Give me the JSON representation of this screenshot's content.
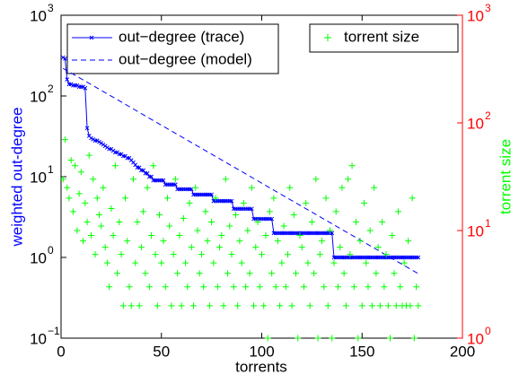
{
  "chart_data": {
    "type": "line",
    "xlabel": "torrents",
    "ylabel": "weighted out-degree",
    "y2label": "torrent size",
    "ylabel_color": "#0000ff",
    "y2label_color": "#00ff00",
    "y2axis_color": "#ff0000",
    "xlim": [
      0,
      200
    ],
    "xticks": [
      0,
      50,
      100,
      150,
      200
    ],
    "ylim": [
      0.1,
      1000
    ],
    "yscale": "log",
    "yticks": [
      {
        "value": 0.1,
        "label": "10",
        "exponent": "−1"
      },
      {
        "value": 1,
        "label": "10",
        "exponent": "0"
      },
      {
        "value": 10,
        "label": "10",
        "exponent": "1"
      },
      {
        "value": 100,
        "label": "10",
        "exponent": "2"
      },
      {
        "value": 1000,
        "label": "10",
        "exponent": "3"
      }
    ],
    "y2lim": [
      1,
      1000
    ],
    "y2scale": "log",
    "y2ticks": [
      {
        "value": 1,
        "label": "10",
        "exponent": "0"
      },
      {
        "value": 10,
        "label": "10",
        "exponent": "1"
      },
      {
        "value": 100,
        "label": "10",
        "exponent": "2"
      },
      {
        "value": 1000,
        "label": "10",
        "exponent": "3"
      }
    ],
    "legend_loc": "upper left",
    "legend2_loc": "upper right",
    "x": [
      1,
      2,
      3,
      4,
      5,
      6,
      7,
      8,
      9,
      10,
      11,
      12,
      13,
      14,
      15,
      16,
      17,
      18,
      19,
      20,
      21,
      22,
      23,
      24,
      25,
      26,
      27,
      28,
      29,
      30,
      31,
      32,
      33,
      34,
      35,
      36,
      37,
      38,
      39,
      40,
      41,
      42,
      43,
      44,
      45,
      46,
      47,
      48,
      49,
      50,
      51,
      52,
      53,
      54,
      55,
      56,
      57,
      58,
      59,
      60,
      61,
      62,
      63,
      64,
      65,
      66,
      67,
      68,
      69,
      70,
      71,
      72,
      73,
      74,
      75,
      76,
      77,
      78,
      79,
      80,
      81,
      82,
      83,
      84,
      85,
      86,
      87,
      88,
      89,
      90,
      91,
      92,
      93,
      94,
      95,
      96,
      97,
      98,
      99,
      100,
      101,
      102,
      103,
      104,
      105,
      106,
      107,
      108,
      109,
      110,
      111,
      112,
      113,
      114,
      115,
      116,
      117,
      118,
      119,
      120,
      121,
      122,
      123,
      124,
      125,
      126,
      127,
      128,
      129,
      130,
      131,
      132,
      133,
      134,
      135,
      136,
      137,
      138,
      139,
      140,
      141,
      142,
      143,
      144,
      145,
      146,
      147,
      148,
      149,
      150,
      151,
      152,
      153,
      154,
      155,
      156,
      157,
      158,
      159,
      160,
      161,
      162,
      163,
      164,
      165,
      166,
      167,
      168,
      169,
      170,
      171,
      172,
      173,
      174,
      175,
      176,
      177,
      178
    ],
    "series": [
      {
        "name": "out−degree (trace)",
        "color": "#0000ff",
        "style": "solid",
        "marker": "x",
        "axis": "y",
        "values": [
          300,
          290,
          160,
          140,
          140,
          135,
          135,
          135,
          130,
          130,
          130,
          125,
          40,
          32,
          30,
          29,
          28,
          28,
          27,
          26,
          25,
          24,
          23,
          22,
          22,
          21,
          20,
          20,
          19,
          19,
          18,
          18,
          17,
          17,
          16,
          15,
          14,
          13,
          13,
          12,
          12,
          11,
          11,
          10,
          10,
          9,
          9,
          9,
          9,
          9,
          9,
          8,
          8,
          8,
          8,
          8,
          8,
          7,
          7,
          7,
          7,
          7,
          7,
          7,
          7,
          6,
          6,
          6,
          6,
          6,
          6,
          6,
          6,
          6,
          6,
          5,
          5,
          5,
          5,
          5,
          5,
          5,
          5,
          5,
          5,
          4,
          4,
          4,
          4,
          4,
          4,
          4,
          4,
          4,
          4,
          3,
          3,
          3,
          3,
          3,
          3,
          3,
          3,
          3,
          3,
          2,
          2,
          2,
          2,
          2,
          2,
          2,
          2,
          2,
          2,
          2,
          2,
          2,
          2,
          2,
          2,
          2,
          2,
          2,
          2,
          2,
          2,
          2,
          2,
          2,
          2,
          2,
          2,
          2,
          2,
          1,
          1,
          1,
          1,
          1,
          1,
          1,
          1,
          1,
          1,
          1,
          1,
          1,
          1,
          1,
          1,
          1,
          1,
          1,
          1,
          1,
          1,
          1,
          1,
          1,
          1,
          1,
          1,
          1,
          1,
          1,
          1,
          1,
          1,
          1,
          1,
          1,
          1,
          1,
          1,
          1,
          1,
          1
        ]
      },
      {
        "name": "out−degree (model)",
        "color": "#0000ff",
        "style": "dashed",
        "axis": "y",
        "x": [
          1,
          178
        ],
        "values": [
          220,
          0.63
        ]
      },
      {
        "name": "torrent size",
        "color": "#00ff00",
        "style": "none",
        "marker": "+",
        "axis": "y2",
        "values": [
          30,
          70,
          25,
          20,
          45,
          15,
          40,
          10,
          22,
          35,
          8,
          18,
          12,
          50,
          9,
          30,
          6,
          20,
          14,
          11,
          25,
          7,
          5,
          3,
          16,
          9,
          40,
          4,
          12,
          6,
          2,
          20,
          8,
          3,
          2,
          30,
          5,
          12,
          2,
          7,
          15,
          4,
          25,
          3,
          9,
          40,
          6,
          2,
          14,
          5,
          8,
          3,
          20,
          11,
          2,
          6,
          30,
          4,
          9,
          2,
          13,
          5,
          3,
          18,
          7,
          2,
          25,
          10,
          4,
          6,
          3,
          15,
          8,
          2,
          12,
          5,
          20,
          3,
          7,
          9,
          2,
          30,
          4,
          11,
          6,
          3,
          14,
          2,
          8,
          5,
          18,
          3,
          10,
          4,
          25,
          2,
          7,
          12,
          3,
          6,
          2,
          9,
          1,
          15,
          4,
          20,
          3,
          8,
          2,
          5,
          11,
          3,
          6,
          25,
          2,
          14,
          4,
          1,
          9,
          7,
          3,
          18,
          5,
          2,
          12,
          4,
          30,
          1,
          6,
          8,
          3,
          20,
          2,
          10,
          1,
          5,
          15,
          3,
          7,
          25,
          4,
          2,
          30,
          6,
          40,
          3,
          12,
          1,
          8,
          2,
          18,
          5,
          3,
          10,
          2,
          25,
          4,
          7,
          2,
          12,
          3,
          6,
          2,
          1,
          9,
          4,
          2,
          15,
          3,
          2,
          5,
          2,
          8,
          2,
          20,
          1,
          3,
          2
        ]
      }
    ]
  }
}
